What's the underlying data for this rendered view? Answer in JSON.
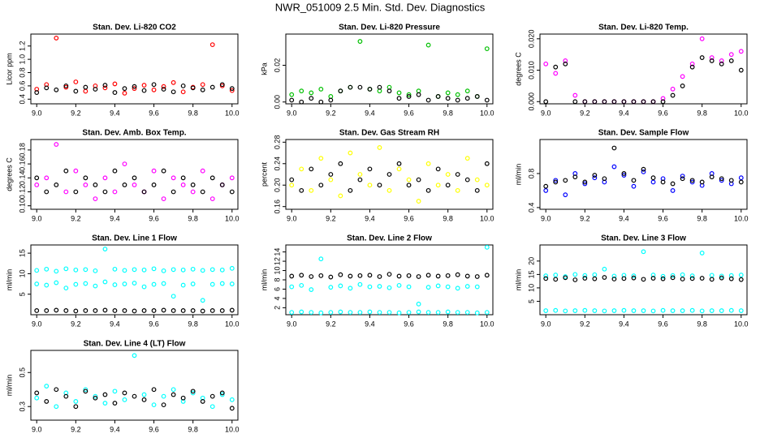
{
  "title": "NWR_051009  2.5 Min. Std. Dev. Diagnostics",
  "chart_data": [
    {
      "type": "scatter",
      "title": "Stan. Dev. Li-820 CO2",
      "y_label": "Licor ppm",
      "x": [
        9.0,
        9.05,
        9.1,
        9.15,
        9.2,
        9.25,
        9.3,
        9.35,
        9.4,
        9.45,
        9.5,
        9.55,
        9.6,
        9.65,
        9.7,
        9.75,
        9.8,
        9.85,
        9.9,
        9.95,
        10.0
      ],
      "series": [
        {
          "color": "#ff0000",
          "values": [
            0.55,
            0.62,
            1.32,
            0.58,
            0.66,
            0.52,
            0.6,
            0.57,
            0.63,
            0.49,
            0.56,
            0.61,
            0.54,
            0.59,
            0.65,
            0.51,
            0.58,
            0.62,
            1.22,
            0.6,
            0.53
          ]
        },
        {
          "color": "#000000",
          "values": [
            0.5,
            0.57,
            0.54,
            0.6,
            0.52,
            0.58,
            0.55,
            0.61,
            0.5,
            0.56,
            0.59,
            0.53,
            0.62,
            0.55,
            0.51,
            0.6,
            0.57,
            0.54,
            0.58,
            0.62,
            0.56
          ]
        }
      ],
      "xlim": [
        8.97,
        10.03
      ],
      "xticks": [
        {
          "value": 9,
          "label": "9.0"
        },
        9.2,
        9.4,
        9.6,
        9.8,
        {
          "value": 10,
          "label": "10.0"
        }
      ],
      "ylim": [
        0.33,
        1.38
      ],
      "yticks": [
        0.4,
        0.6,
        0.8,
        {
          "value": 1,
          "label": "1.0"
        },
        1.2
      ]
    },
    {
      "type": "scatter",
      "title": "Stan. Dev. Li-820 Pressure",
      "y_label": "kPa",
      "x": [
        9.0,
        9.05,
        9.1,
        9.15,
        9.2,
        9.25,
        9.3,
        9.35,
        9.4,
        9.45,
        9.5,
        9.55,
        9.6,
        9.65,
        9.7,
        9.75,
        9.8,
        9.85,
        9.9,
        9.95,
        10.0
      ],
      "series": [
        {
          "color": "#00c000",
          "values": [
            0.004,
            0.006,
            0.005,
            0.007,
            0.003,
            0.006,
            0.008,
            0.033,
            0.007,
            0.006,
            0.008,
            0.005,
            0.004,
            0.006,
            0.031,
            0.003,
            0.005,
            0.004,
            0.006,
            0.003,
            0.029
          ]
        },
        {
          "color": "#000000",
          "values": [
            0.001,
            0,
            0.002,
            0,
            0.001,
            0.006,
            0.008,
            0.008,
            0.007,
            0.008,
            0.006,
            0.002,
            0.003,
            0.004,
            0.001,
            0.003,
            0.002,
            0.001,
            0.002,
            0.003,
            0.001
          ]
        }
      ],
      "xlim": [
        8.97,
        10.03
      ],
      "xticks": [
        {
          "value": 9,
          "label": "9.0"
        },
        9.2,
        9.4,
        9.6,
        9.8,
        {
          "value": 10,
          "label": "10.0"
        }
      ],
      "ylim": [
        -0.001,
        0.037
      ],
      "yticks": [
        {
          "value": 0,
          "label": "0.00"
        },
        0.02
      ]
    },
    {
      "type": "scatter",
      "title": "Stan. Dev. Li-820 Temp.",
      "y_label": "degrees C",
      "x": [
        9.0,
        9.05,
        9.1,
        9.15,
        9.2,
        9.25,
        9.3,
        9.35,
        9.4,
        9.45,
        9.5,
        9.55,
        9.6,
        9.65,
        9.7,
        9.75,
        9.8,
        9.85,
        9.9,
        9.95,
        10.0
      ],
      "series": [
        {
          "color": "#ff00ff",
          "values": [
            0.012,
            0.009,
            0.013,
            0.002,
            0,
            0,
            0,
            0,
            0,
            0,
            0,
            0,
            0.001,
            0.004,
            0.008,
            0.012,
            0.02,
            0.014,
            0.013,
            0.015,
            0.016
          ]
        },
        {
          "color": "#000000",
          "values": [
            0,
            0.011,
            0.012,
            0,
            0,
            0,
            0,
            0,
            0,
            0,
            0,
            0,
            0,
            0.002,
            0.005,
            0.011,
            0.014,
            0.013,
            0.012,
            0.013,
            0.01
          ]
        }
      ],
      "xlim": [
        8.97,
        10.03
      ],
      "xticks": [
        {
          "value": 9,
          "label": "9.0"
        },
        9.2,
        9.4,
        9.6,
        9.8,
        {
          "value": 10,
          "label": "10.0"
        }
      ],
      "ylim": [
        -0.0007,
        0.0215
      ],
      "yticks": [
        {
          "value": 0,
          "label": "0.000"
        },
        {
          "value": 0.01,
          "label": "0.010"
        },
        {
          "value": 0.02,
          "label": "0.020"
        }
      ]
    },
    {
      "type": "scatter",
      "title": "Stan. Dev. Amb. Box Temp.",
      "y_label": "degrees C",
      "x": [
        9.0,
        9.05,
        9.1,
        9.15,
        9.2,
        9.25,
        9.3,
        9.35,
        9.4,
        9.45,
        9.5,
        9.55,
        9.6,
        9.65,
        9.7,
        9.75,
        9.8,
        9.85,
        9.9,
        9.95,
        10.0
      ],
      "series": [
        {
          "color": "#ff00ff",
          "values": [
            0.13,
            0.14,
            0.188,
            0.12,
            0.15,
            0.13,
            0.11,
            0.14,
            0.12,
            0.16,
            0.13,
            0.12,
            0.15,
            0.11,
            0.14,
            0.13,
            0.12,
            0.15,
            0.11,
            0.13,
            0.14
          ]
        },
        {
          "color": "#000000",
          "values": [
            0.14,
            0.12,
            0.13,
            0.15,
            0.12,
            0.14,
            0.13,
            0.12,
            0.15,
            0.13,
            0.14,
            0.12,
            0.13,
            0.15,
            0.12,
            0.14,
            0.13,
            0.12,
            0.14,
            0.13,
            0.12
          ]
        }
      ],
      "xlim": [
        8.97,
        10.03
      ],
      "xticks": [
        {
          "value": 9,
          "label": "9.0"
        },
        9.2,
        9.4,
        9.6,
        9.8,
        {
          "value": 10,
          "label": "10.0"
        }
      ],
      "ylim": [
        0.095,
        0.195
      ],
      "yticks": [
        {
          "value": 0.1,
          "label": "0.10"
        },
        0.12,
        0.14,
        0.16,
        0.18
      ]
    },
    {
      "type": "scatter",
      "title": "Stan. Dev. Gas Stream RH",
      "y_label": "percent",
      "x": [
        9.0,
        9.05,
        9.1,
        9.15,
        9.2,
        9.25,
        9.3,
        9.35,
        9.4,
        9.45,
        9.5,
        9.55,
        9.6,
        9.65,
        9.7,
        9.75,
        9.8,
        9.85,
        9.9,
        9.95,
        10.0
      ],
      "series": [
        {
          "color": "#ffff00",
          "values": [
            0.2,
            0.23,
            0.19,
            0.25,
            0.21,
            0.18,
            0.26,
            0.22,
            0.2,
            0.27,
            0.19,
            0.23,
            0.21,
            0.17,
            0.24,
            0.2,
            0.22,
            0.19,
            0.25,
            0.21,
            0.2
          ]
        },
        {
          "color": "#000000",
          "values": [
            0.21,
            0.19,
            0.23,
            0.2,
            0.22,
            0.24,
            0.19,
            0.21,
            0.23,
            0.2,
            0.22,
            0.24,
            0.2,
            0.21,
            0.19,
            0.23,
            0.2,
            0.22,
            0.21,
            0.19,
            0.24
          ]
        }
      ],
      "xlim": [
        8.97,
        10.03
      ],
      "xticks": [
        {
          "value": 9,
          "label": "9.0"
        },
        9.2,
        9.4,
        9.6,
        9.8,
        {
          "value": 10,
          "label": "10.0"
        }
      ],
      "ylim": [
        0.155,
        0.285
      ],
      "yticks": [
        0.16,
        {
          "value": 0.2,
          "label": "0.20"
        },
        0.24,
        0.28
      ]
    },
    {
      "type": "scatter",
      "title": "Stan. Dev. Sample Flow",
      "y_label": "ml/min",
      "x": [
        9.0,
        9.05,
        9.1,
        9.15,
        9.2,
        9.25,
        9.3,
        9.35,
        9.4,
        9.45,
        9.5,
        9.55,
        9.6,
        9.65,
        9.7,
        9.75,
        9.8,
        9.85,
        9.9,
        9.95,
        10.0
      ],
      "series": [
        {
          "color": "#0000ff",
          "values": [
            0.6,
            0.72,
            0.55,
            0.8,
            0.68,
            0.75,
            0.7,
            0.88,
            0.78,
            0.65,
            0.82,
            0.7,
            0.74,
            0.6,
            0.77,
            0.7,
            0.66,
            0.8,
            0.72,
            0.68,
            0.75
          ]
        },
        {
          "color": "#000000",
          "values": [
            0.65,
            0.7,
            0.72,
            0.76,
            0.7,
            0.78,
            0.74,
            1.1,
            0.8,
            0.72,
            0.85,
            0.75,
            0.7,
            0.68,
            0.74,
            0.72,
            0.7,
            0.76,
            0.74,
            0.72,
            0.7
          ]
        }
      ],
      "xlim": [
        8.97,
        10.03
      ],
      "xticks": [
        {
          "value": 9,
          "label": "9.0"
        },
        9.2,
        9.4,
        9.6,
        9.8,
        {
          "value": 10,
          "label": "10.0"
        }
      ],
      "ylim": [
        0.38,
        1.2
      ],
      "yticks": [
        0.4,
        0.8
      ]
    },
    {
      "type": "scatter",
      "title": "Stan. Dev. Line 1 Flow",
      "y_label": "ml/min",
      "x": [
        9.0,
        9.05,
        9.1,
        9.15,
        9.2,
        9.25,
        9.3,
        9.35,
        9.4,
        9.45,
        9.5,
        9.55,
        9.6,
        9.65,
        9.7,
        9.75,
        9.8,
        9.85,
        9.9,
        9.95,
        10.0
      ],
      "series": [
        {
          "color": "#00ffff",
          "values": [
            10.8,
            11.1,
            10.6,
            11.2,
            10.9,
            11,
            10.7,
            16,
            11.1,
            10.8,
            11,
            10.9,
            11.2,
            10.7,
            11,
            10.9,
            11.1,
            10.8,
            11,
            10.9,
            11.3
          ]
        },
        {
          "color": "#00ffff",
          "values": [
            7.5,
            7.2,
            7.8,
            6.5,
            7.4,
            7.6,
            7,
            8,
            7.3,
            7.5,
            7.7,
            6.8,
            7.4,
            7.6,
            4.5,
            7.2,
            7.5,
            3.5,
            7.4,
            7.6,
            7.5
          ]
        },
        {
          "color": "#000000",
          "values": [
            1,
            1,
            1.1,
            1,
            0.9,
            1,
            1,
            1.1,
            1,
            1,
            0.9,
            1,
            1,
            1.1,
            1,
            1,
            1,
            0.9,
            1,
            1,
            1.1
          ]
        }
      ],
      "xlim": [
        8.97,
        10.03
      ],
      "xticks": [
        {
          "value": 9,
          "label": "9.0"
        },
        9.2,
        9.4,
        9.6,
        9.8,
        {
          "value": 10,
          "label": "10.0"
        }
      ],
      "ylim": [
        0,
        17
      ],
      "yticks": [
        5,
        10,
        15
      ]
    },
    {
      "type": "scatter",
      "title": "Stan. Dev. Line 2 Flow",
      "y_label": "ml/min",
      "x": [
        9.0,
        9.05,
        9.1,
        9.15,
        9.2,
        9.25,
        9.3,
        9.35,
        9.4,
        9.45,
        9.5,
        9.55,
        9.6,
        9.65,
        9.7,
        9.75,
        9.8,
        9.85,
        9.9,
        9.95,
        10.0
      ],
      "series": [
        {
          "color": "#00ffff",
          "values": [
            6.5,
            6.8,
            5.9,
            12.5,
            6.4,
            6.7,
            6.2,
            7,
            6.5,
            6.6,
            6.3,
            6.8,
            6.5,
            2.8,
            6.4,
            6.7,
            6.5,
            6.2,
            6.6,
            6.5,
            15
          ]
        },
        {
          "color": "#00ffff",
          "values": [
            1,
            1.1,
            1,
            0.9,
            1,
            1.1,
            1,
            1,
            1.1,
            1,
            1,
            0.9,
            1,
            1.1,
            1,
            1,
            1.1,
            1,
            1,
            0.9,
            1
          ]
        },
        {
          "color": "#000000",
          "values": [
            8.8,
            9,
            8.7,
            8.9,
            8.6,
            9.1,
            8.8,
            8.9,
            9,
            8.7,
            9.2,
            8.8,
            8.9,
            8.7,
            9,
            8.8,
            8.9,
            9.1,
            8.8,
            8.7,
            9
          ]
        }
      ],
      "xlim": [
        8.97,
        10.03
      ],
      "xticks": [
        {
          "value": 9,
          "label": "9.0"
        },
        9.2,
        9.4,
        9.6,
        9.8,
        {
          "value": 10,
          "label": "10.0"
        }
      ],
      "ylim": [
        0.5,
        15.5
      ],
      "yticks": [
        2,
        4,
        6,
        8,
        10,
        12,
        14
      ]
    },
    {
      "type": "scatter",
      "title": "Stan. Dev. Line 3 Flow",
      "y_label": "ml/min",
      "x": [
        9.0,
        9.05,
        9.1,
        9.15,
        9.2,
        9.25,
        9.3,
        9.35,
        9.4,
        9.45,
        9.5,
        9.55,
        9.6,
        9.65,
        9.7,
        9.75,
        9.8,
        9.85,
        9.9,
        9.95,
        10.0
      ],
      "series": [
        {
          "color": "#00ffff",
          "values": [
            14.5,
            14.8,
            14.2,
            15,
            14.6,
            14.9,
            17,
            14.4,
            14.7,
            14.5,
            23.5,
            14.8,
            14.3,
            14.6,
            14.9,
            14.5,
            23,
            14.7,
            14.4,
            14.6,
            14.8
          ]
        },
        {
          "color": "#00ffff",
          "values": [
            1.5,
            1.6,
            1.4,
            1.5,
            1.6,
            1.5,
            1.4,
            1.5,
            1.6,
            1.5,
            1.5,
            1.4,
            1.6,
            1.5,
            1.5,
            1.6,
            1.4,
            1.5,
            1.5,
            1.6,
            1.5
          ]
        },
        {
          "color": "#000000",
          "values": [
            13.5,
            13.2,
            13.8,
            13,
            13.6,
            13.4,
            13.9,
            13.3,
            13.5,
            13.7,
            13.2,
            13.6,
            13.4,
            13.8,
            13.3,
            13.5,
            13.6,
            13.2,
            13.7,
            13.4,
            13.1
          ]
        }
      ],
      "xlim": [
        8.97,
        10.03
      ],
      "xticks": [
        {
          "value": 9,
          "label": "9.0"
        },
        9.2,
        9.4,
        9.6,
        9.8,
        {
          "value": 10,
          "label": "10.0"
        }
      ],
      "ylim": [
        0,
        26
      ],
      "yticks": [
        5,
        10,
        15,
        20
      ]
    },
    {
      "type": "scatter",
      "title": "Stan. Dev. Line 4 (LT) Flow",
      "y_label": "ml/min",
      "x": [
        9.0,
        9.05,
        9.1,
        9.15,
        9.2,
        9.25,
        9.3,
        9.35,
        9.4,
        9.45,
        9.5,
        9.55,
        9.6,
        9.65,
        9.7,
        9.75,
        9.8,
        9.85,
        9.9,
        9.95,
        10.0
      ],
      "series": [
        {
          "color": "#00ffff",
          "values": [
            0.35,
            0.42,
            0.3,
            0.38,
            0.33,
            0.4,
            0.36,
            0.32,
            0.39,
            0.34,
            0.6,
            0.37,
            0.31,
            0.36,
            0.4,
            0.33,
            0.38,
            0.35,
            0.3,
            0.37,
            0.34
          ]
        },
        {
          "color": "#000000",
          "values": [
            0.38,
            0.33,
            0.4,
            0.36,
            0.3,
            0.39,
            0.35,
            0.37,
            0.32,
            0.38,
            0.36,
            0.34,
            0.4,
            0.31,
            0.37,
            0.35,
            0.39,
            0.33,
            0.36,
            0.38,
            0.29
          ]
        }
      ],
      "xlim": [
        8.97,
        10.03
      ],
      "xticks": [
        {
          "value": 9,
          "label": "9.0"
        },
        9.2,
        9.4,
        9.6,
        9.8,
        {
          "value": 10,
          "label": "10.0"
        }
      ],
      "ylim": [
        0.22,
        0.63
      ],
      "yticks": [
        0.3,
        0.5
      ]
    }
  ]
}
